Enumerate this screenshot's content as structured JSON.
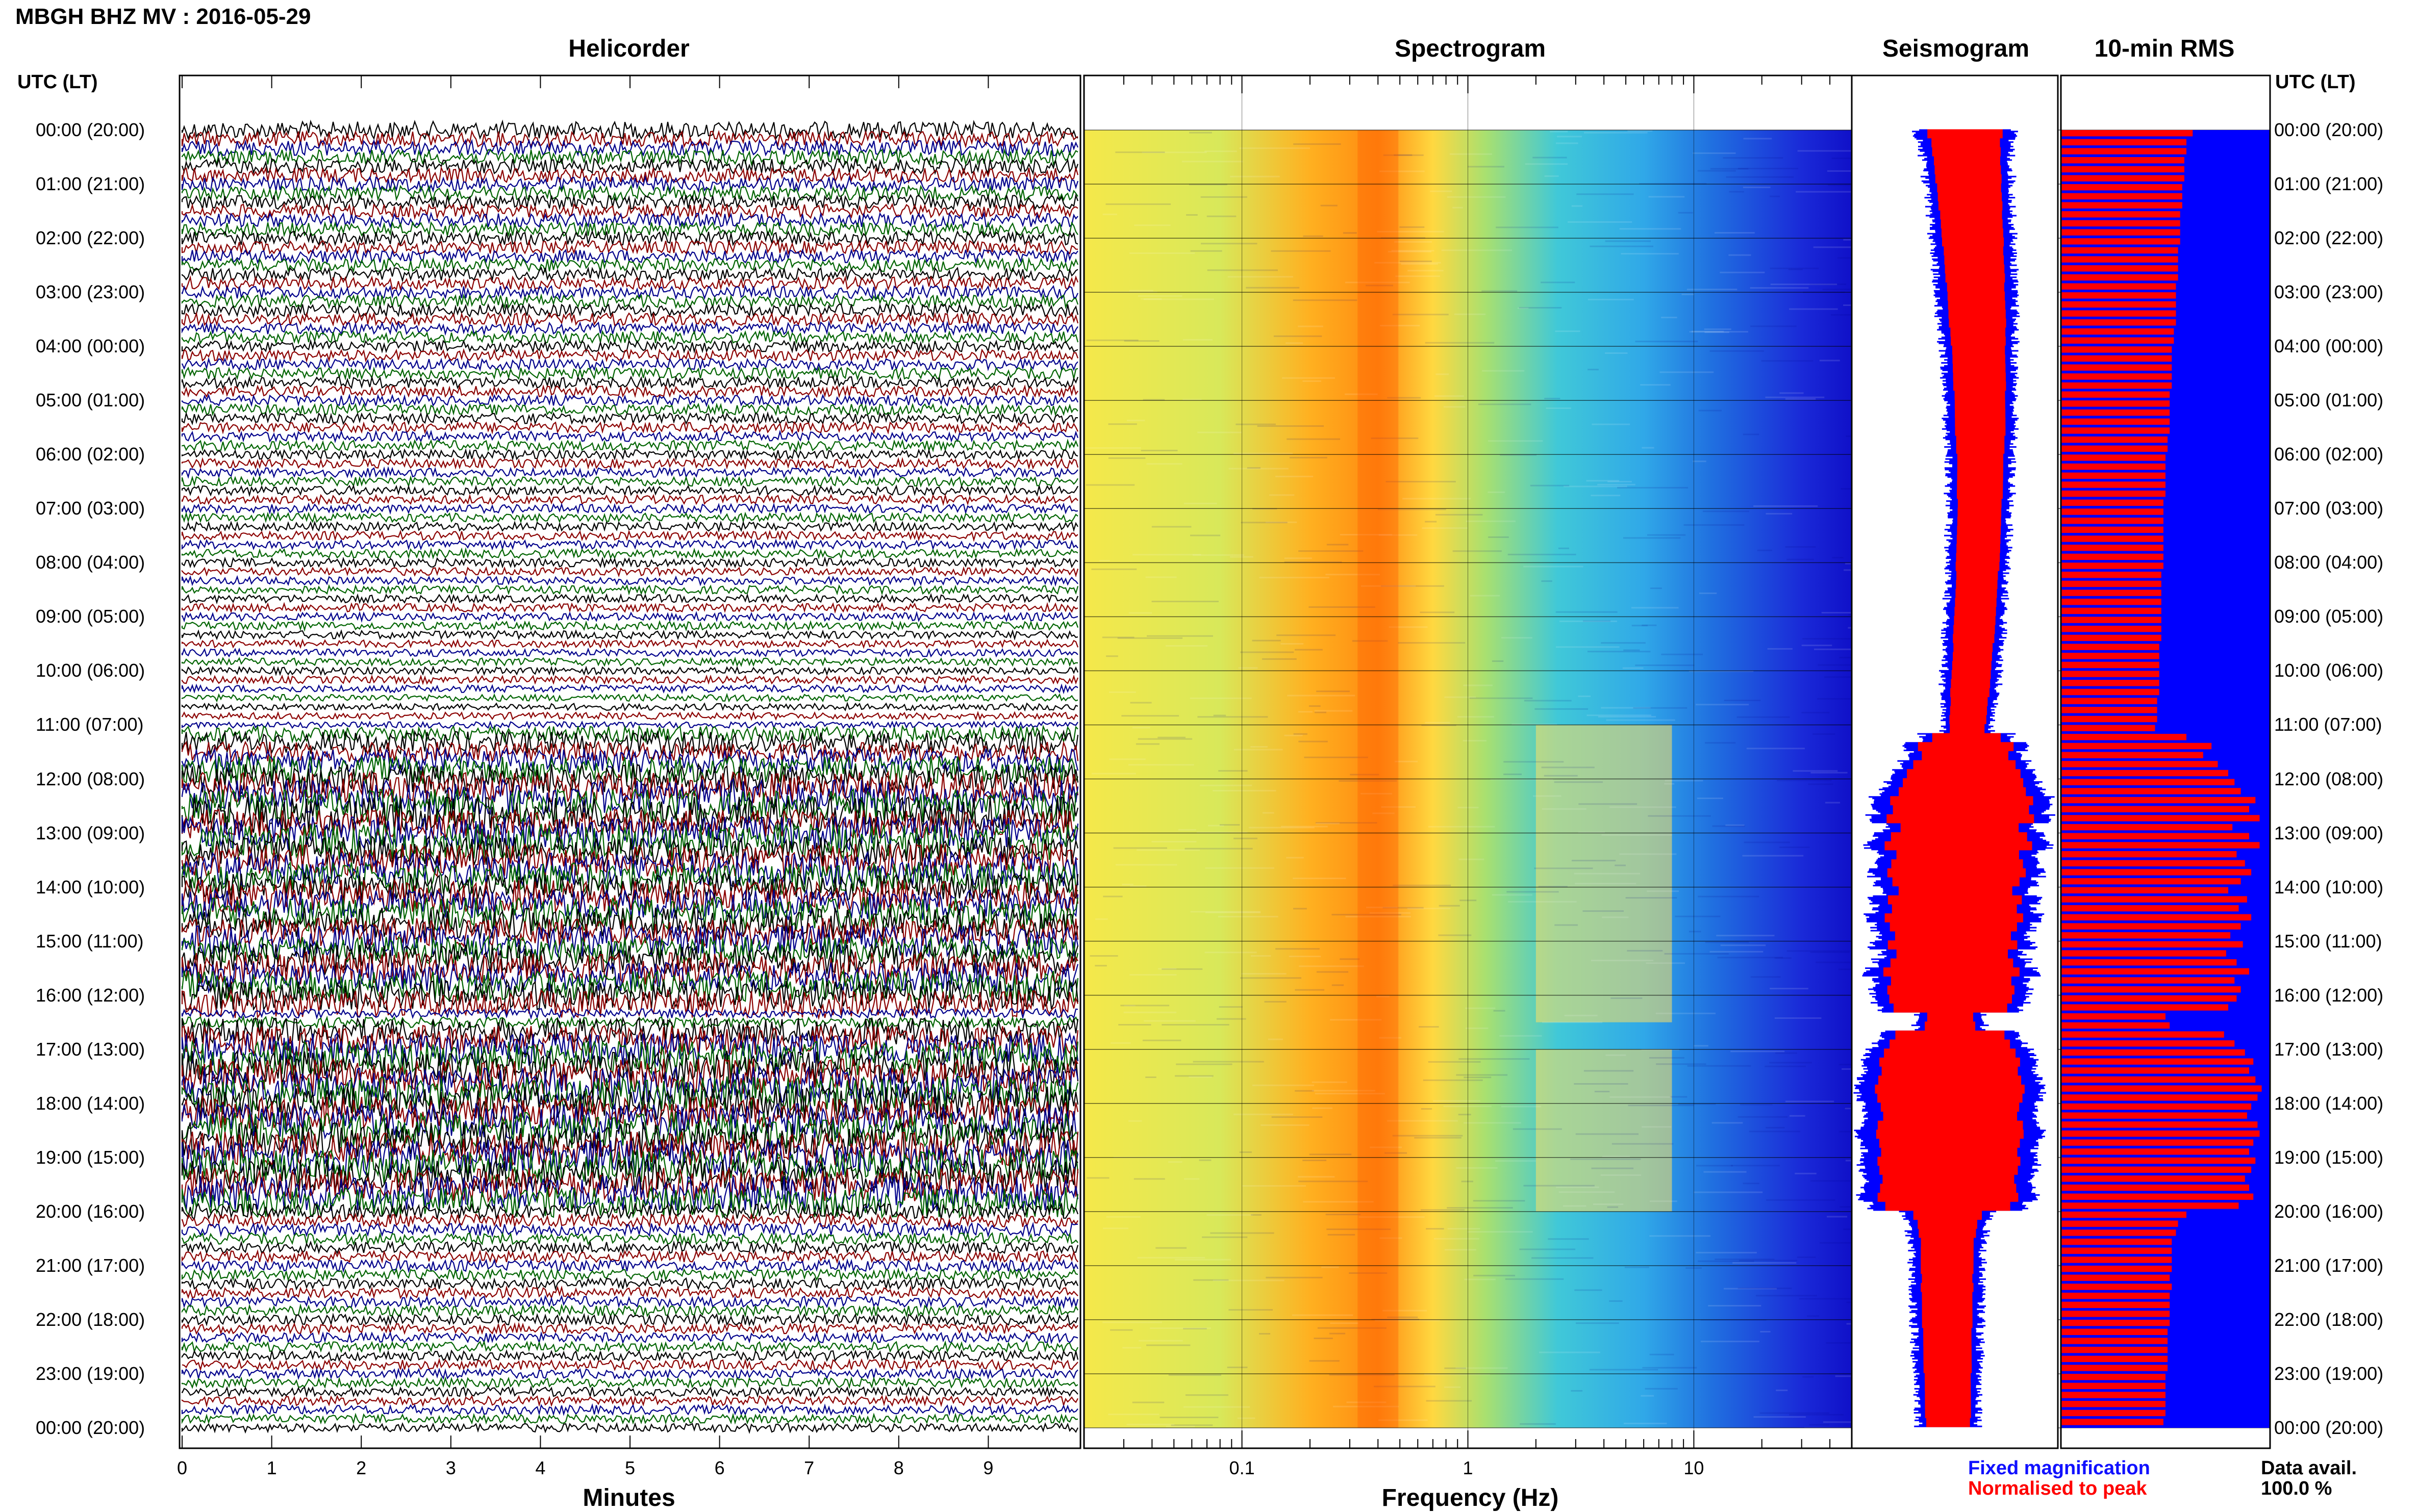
{
  "header": {
    "title": "MBGH BHZ MV : 2016-05-29"
  },
  "panels": {
    "helicorder": "Helicorder",
    "spectrogram": "Spectrogram",
    "seismogram": "Seismogram",
    "rms": "10-min RMS"
  },
  "axis": {
    "time_title_left": "UTC (LT)",
    "time_title_right": "UTC (LT)",
    "minutes_label": "Minutes",
    "frequency_label": "Frequency (Hz)"
  },
  "legend": {
    "fixed": "Fixed magnification",
    "normalised": "Normalised to peak",
    "data_avail_label": "Data avail.",
    "data_avail_value": "100.0 %"
  },
  "colors": {
    "helicorder_traces": [
      "#000000",
      "#8b0000",
      "#00008b",
      "#006400"
    ],
    "fixed_magnification": "#0000ff",
    "normalised_to_peak": "#ff0000",
    "spectrogram_low": "#1a1adb",
    "spectrogram_high": "#ff3300"
  },
  "chart_data": {
    "type": "heatmap",
    "title": "MBGH BHZ MV : 2016-05-29",
    "time_labels": [
      "00:00 (20:00)",
      "01:00 (21:00)",
      "02:00 (22:00)",
      "03:00 (23:00)",
      "04:00 (00:00)",
      "05:00 (01:00)",
      "06:00 (02:00)",
      "07:00 (03:00)",
      "08:00 (04:00)",
      "09:00 (05:00)",
      "10:00 (06:00)",
      "11:00 (07:00)",
      "12:00 (08:00)",
      "13:00 (09:00)",
      "14:00 (10:00)",
      "15:00 (11:00)",
      "16:00 (12:00)",
      "17:00 (13:00)",
      "18:00 (14:00)",
      "19:00 (15:00)",
      "20:00 (16:00)",
      "21:00 (17:00)",
      "22:00 (18:00)",
      "23:00 (19:00)",
      "00:00 (20:00)"
    ],
    "helicorder": {
      "xlabel": "Minutes",
      "x_ticks": [
        "0",
        "1",
        "2",
        "3",
        "4",
        "5",
        "6",
        "7",
        "8",
        "9"
      ],
      "xlim": [
        0,
        10
      ],
      "lines_per_hour": 6
    },
    "spectrogram": {
      "xlabel": "Frequency (Hz)",
      "x_scale": "log",
      "x_ticks": [
        "0.1",
        "1",
        "10"
      ],
      "xlim": [
        0.02,
        50
      ],
      "peak_frequency_hz": 0.4,
      "tremor_band_hz": [
        2,
        8
      ],
      "tremor_hours_utc": [
        [
          11,
          12.5
        ],
        [
          12.5,
          16.5
        ],
        [
          17,
          20
        ]
      ]
    },
    "seismogram": {
      "series": [
        {
          "name": "Fixed magnification",
          "color": "#0000ff"
        },
        {
          "name": "Normalised to peak",
          "color": "#ff0000"
        }
      ]
    },
    "rms_10min": {
      "series_name": "Normalised to peak",
      "values": [
        0.63,
        0.6,
        0.6,
        0.59,
        0.59,
        0.59,
        0.58,
        0.58,
        0.58,
        0.57,
        0.57,
        0.57,
        0.57,
        0.56,
        0.56,
        0.56,
        0.56,
        0.55,
        0.55,
        0.55,
        0.55,
        0.55,
        0.54,
        0.54,
        0.53,
        0.53,
        0.53,
        0.53,
        0.53,
        0.52,
        0.52,
        0.52,
        0.52,
        0.52,
        0.51,
        0.51,
        0.5,
        0.5,
        0.5,
        0.5,
        0.5,
        0.49,
        0.49,
        0.49,
        0.49,
        0.49,
        0.49,
        0.49,
        0.49,
        0.48,
        0.48,
        0.48,
        0.48,
        0.48,
        0.48,
        0.48,
        0.48,
        0.47,
        0.47,
        0.47,
        0.47,
        0.47,
        0.47,
        0.46,
        0.46,
        0.46,
        0.45,
        0.6,
        0.72,
        0.68,
        0.75,
        0.8,
        0.83,
        0.86,
        0.93,
        0.9,
        0.95,
        0.82,
        0.9,
        0.95,
        0.84,
        0.88,
        0.91,
        0.86,
        0.8,
        0.89,
        0.85,
        0.91,
        0.86,
        0.81,
        0.87,
        0.79,
        0.84,
        0.9,
        0.83,
        0.86,
        0.84,
        0.8,
        0.5,
        0.52,
        0.78,
        0.83,
        0.88,
        0.92,
        0.9,
        0.93,
        0.96,
        0.94,
        0.91,
        0.89,
        0.94,
        0.95,
        0.92,
        0.9,
        0.93,
        0.91,
        0.88,
        0.9,
        0.92,
        0.85,
        0.6,
        0.56,
        0.55,
        0.53,
        0.53,
        0.53,
        0.53,
        0.52,
        0.53,
        0.52,
        0.52,
        0.52,
        0.52,
        0.51,
        0.51,
        0.51,
        0.51,
        0.51,
        0.5,
        0.5,
        0.5,
        0.5,
        0.5,
        0.49
      ]
    }
  }
}
